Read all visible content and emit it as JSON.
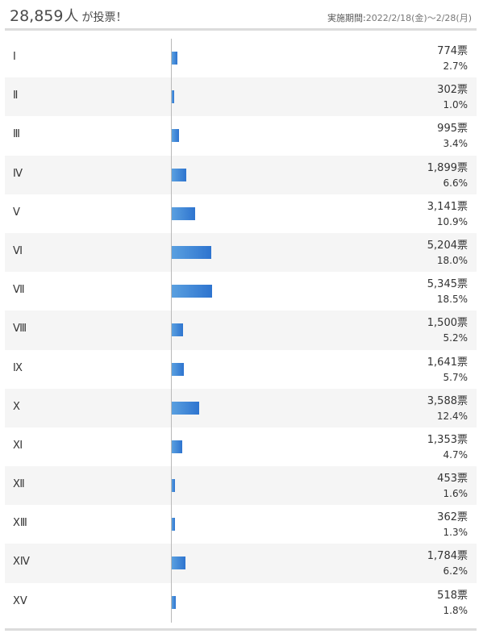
{
  "header": {
    "total_count": "28,859",
    "total_unit": "人",
    "total_suffix": "が投票！",
    "period_label": "実施期間:",
    "period_value": "2022/2/18(金)～2/28(月)"
  },
  "colors": {
    "bar_start": "#5aa0e0",
    "bar_end": "#2e74cf",
    "zebra": "#f5f5f5",
    "rule": "#dcdcdc"
  },
  "chart_data": {
    "type": "bar",
    "orientation": "horizontal",
    "categories": [
      "Ⅰ",
      "Ⅱ",
      "Ⅲ",
      "Ⅳ",
      "Ⅴ",
      "Ⅵ",
      "Ⅶ",
      "Ⅷ",
      "Ⅸ",
      "Ⅹ",
      "Ⅺ",
      "Ⅻ",
      "XⅢ",
      "XⅣ",
      "XⅤ"
    ],
    "values": [
      774,
      302,
      995,
      1899,
      3141,
      5204,
      5345,
      1500,
      1641,
      3588,
      1353,
      453,
      362,
      1784,
      518
    ],
    "vote_labels": [
      "774票",
      "302票",
      "995票",
      "1,899票",
      "3,141票",
      "5,204票",
      "5,345票",
      "1,500票",
      "1,641票",
      "3,588票",
      "1,353票",
      "453票",
      "362票",
      "1,784票",
      "518票"
    ],
    "percent_labels": [
      "2.7%",
      "1.0%",
      "3.4%",
      "6.6%",
      "10.9%",
      "18.0%",
      "18.5%",
      "5.2%",
      "5.7%",
      "12.4%",
      "4.7%",
      "1.6%",
      "1.3%",
      "6.2%",
      "1.8%"
    ],
    "percents": [
      2.7,
      1.0,
      3.4,
      6.6,
      10.9,
      18.0,
      18.5,
      5.2,
      5.7,
      12.4,
      4.7,
      1.6,
      1.3,
      6.2,
      1.8
    ],
    "xlim": [
      0,
      100
    ],
    "grid": false,
    "legend": "none"
  }
}
